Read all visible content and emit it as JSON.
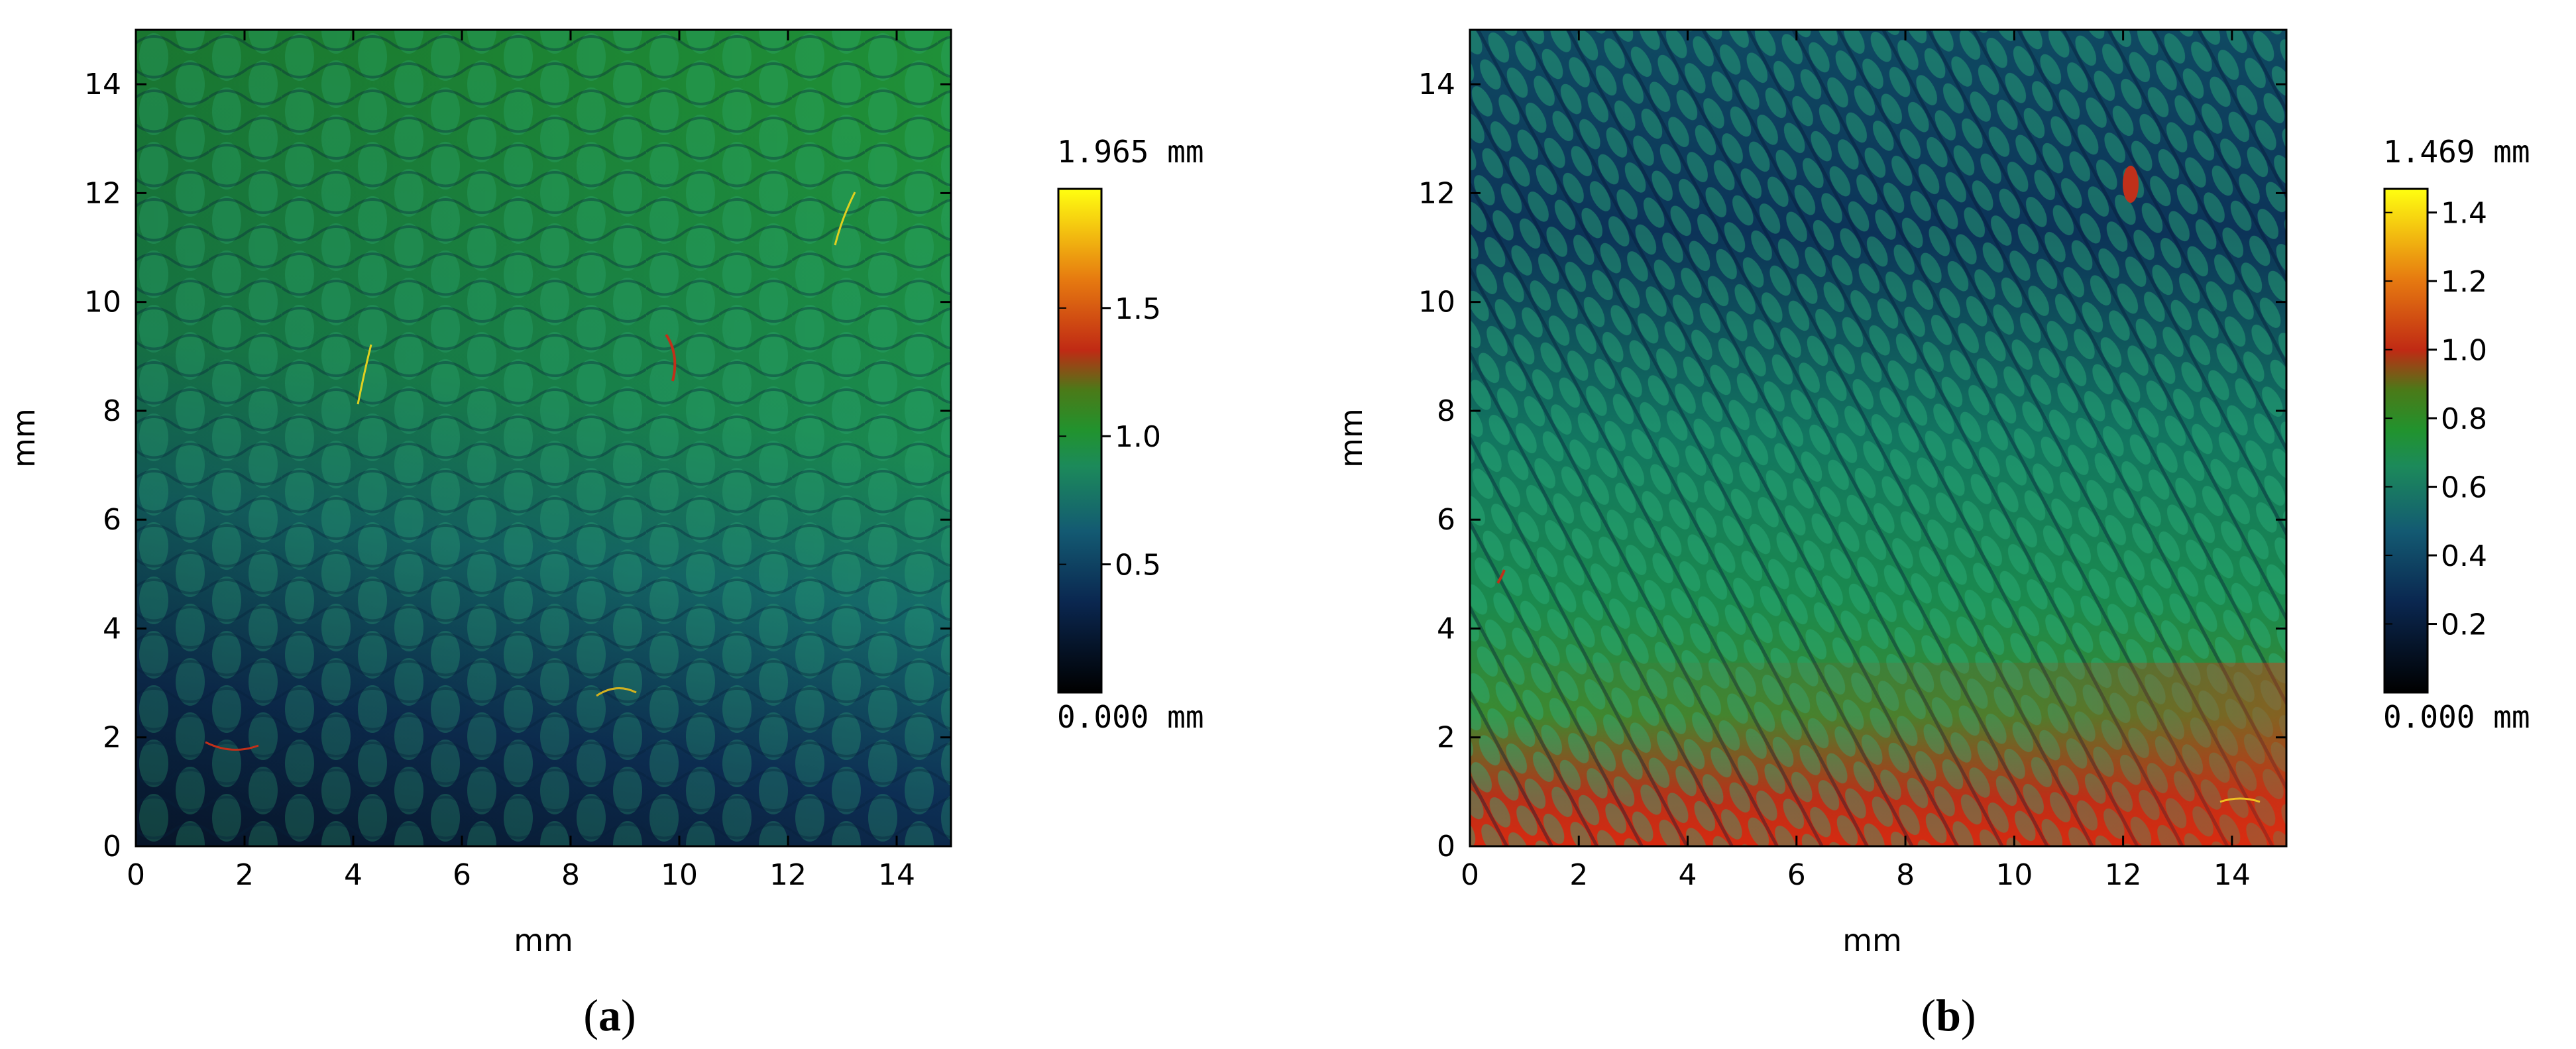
{
  "chart_data": [
    {
      "type": "heatmap",
      "title": "",
      "caption": "(a)",
      "caption_letter": "a",
      "xlabel": "mm",
      "ylabel": "mm",
      "xlim": [
        0,
        15
      ],
      "ylim": [
        0,
        15
      ],
      "x_ticks": [
        0,
        2,
        4,
        6,
        8,
        10,
        12,
        14
      ],
      "y_ticks": [
        0,
        2,
        4,
        6,
        8,
        10,
        12,
        14
      ],
      "colorbar": {
        "max_label": "1.965 mm",
        "min_label": "0.000 mm",
        "min": 0.0,
        "max": 1.965,
        "ticks": [
          0.5,
          1.0,
          1.5
        ],
        "tick_labels": [
          "0.5",
          "1.0",
          "1.5"
        ],
        "colormap": "black-blue-green-red-yellow"
      },
      "surface": {
        "pattern": "woven-fabric texture",
        "trend": "height increases from bottom-left (about 0.3 mm) toward top-right (about 0.8 mm)"
      }
    },
    {
      "type": "heatmap",
      "title": "",
      "caption": "(b)",
      "caption_letter": "b",
      "xlabel": "mm",
      "ylabel": "mm",
      "xlim": [
        0,
        15
      ],
      "ylim": [
        0,
        15
      ],
      "x_ticks": [
        0,
        2,
        4,
        6,
        8,
        10,
        12,
        14
      ],
      "y_ticks": [
        0,
        2,
        4,
        6,
        8,
        10,
        12,
        14
      ],
      "colorbar": {
        "max_label": "1.469 mm",
        "min_label": "0.000 mm",
        "min": 0.0,
        "max": 1.469,
        "ticks": [
          0.2,
          0.4,
          0.6,
          0.8,
          1.0,
          1.2,
          1.4
        ],
        "tick_labels": [
          "0.2",
          "0.4",
          "0.6",
          "0.8",
          "1.0",
          "1.2",
          "1.4"
        ],
        "colormap": "black-blue-green-red-yellow"
      },
      "surface": {
        "pattern": "diagonal knitted texture",
        "trend": "height lowest near top (about 0.4 mm), rising to about 0.9 mm along the bottom edge"
      }
    }
  ],
  "colors": {
    "colormap_stops": [
      "#000000",
      "#0b2a52",
      "#1a6a70",
      "#1f8f45",
      "#2a9a2a",
      "#c0301a",
      "#e07010",
      "#ffee00"
    ],
    "axis": "#000000",
    "background": "#ffffff"
  }
}
